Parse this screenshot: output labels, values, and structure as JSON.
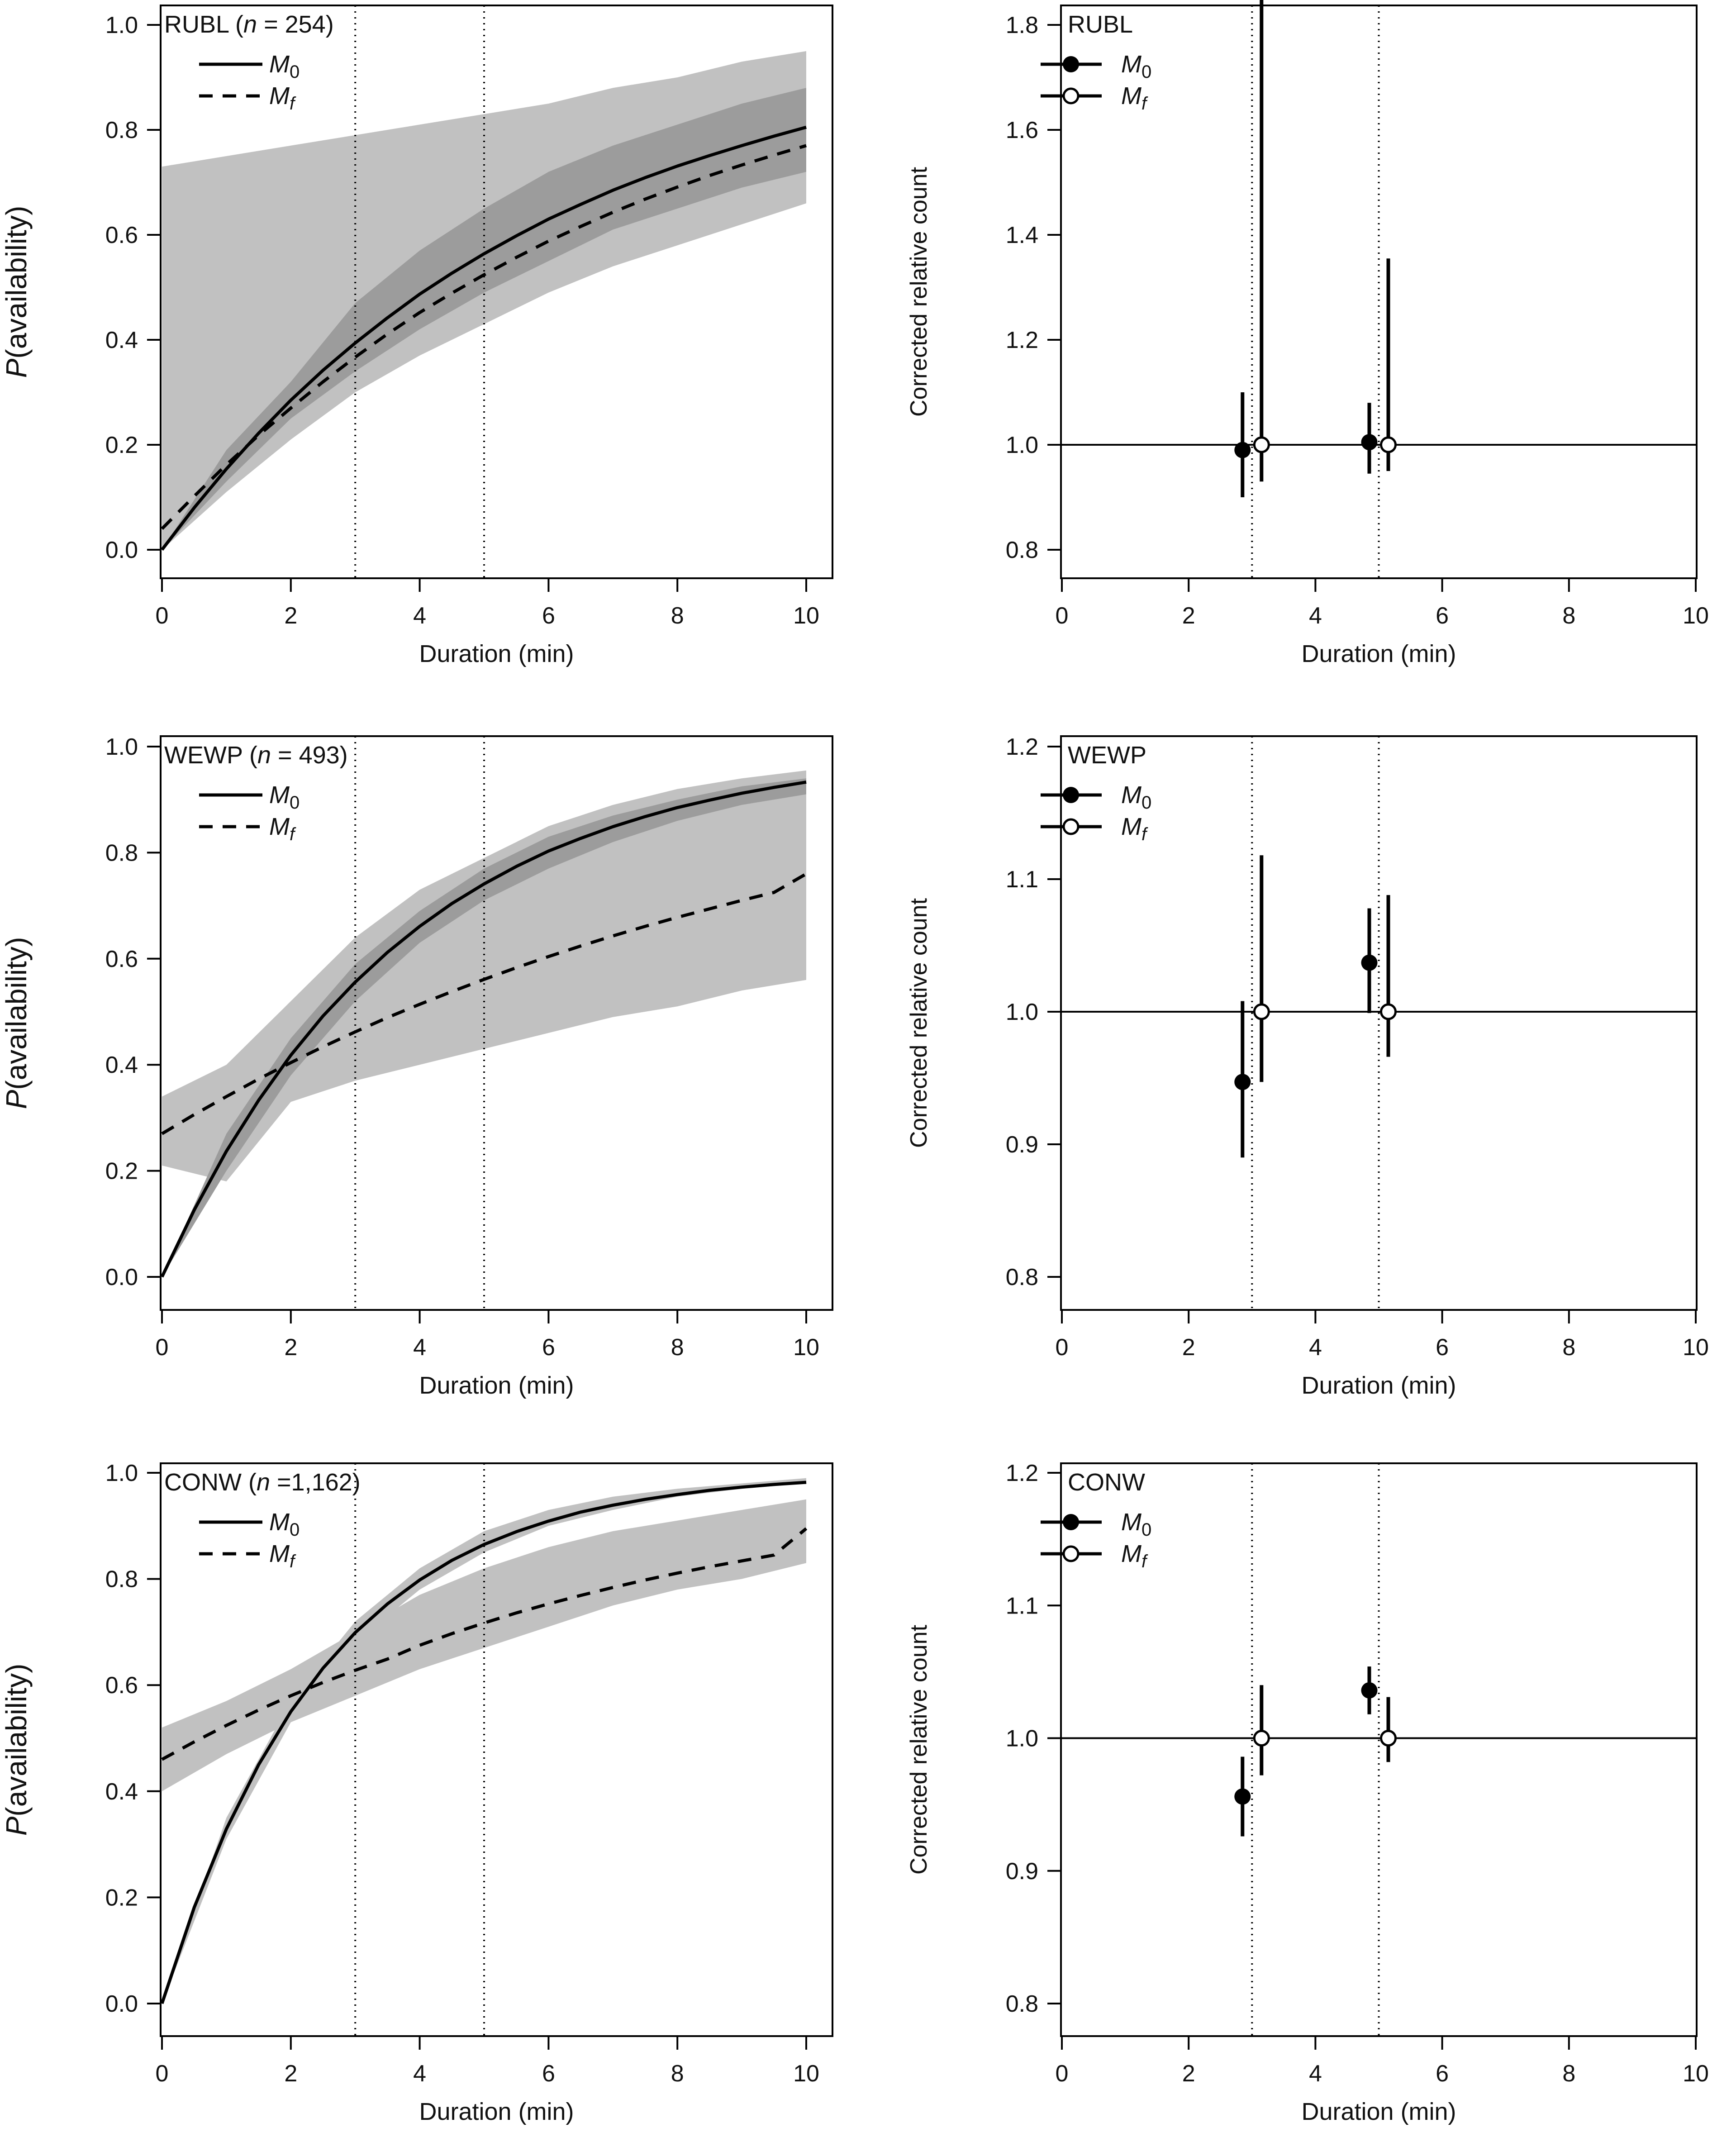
{
  "figure": {
    "x_label": "Duration (min)",
    "background": "#ffffff"
  },
  "colors": {
    "band_light": "#c1c1c1",
    "band_dark": "#9c9c9c",
    "line": "#000000"
  },
  "chart_data": [
    {
      "type": "line",
      "panel": "left",
      "species": "RUBL",
      "label_parts": [
        "RUBL (",
        "n",
        " = 254)"
      ],
      "xlabel": "Duration (min)",
      "ylabel_parts": [
        "P",
        "(availability)"
      ],
      "xlim": [
        0,
        10
      ],
      "ylim": [
        0,
        1
      ],
      "x_ticks": [
        "0",
        "2",
        "4",
        "6",
        "8",
        "10"
      ],
      "y_ticks": [
        "0.0",
        "0.2",
        "0.4",
        "0.6",
        "0.8",
        "1.0"
      ],
      "vlines": [
        3,
        5
      ],
      "legend": [
        {
          "name": "M",
          "sub": "0",
          "style": "solid"
        },
        {
          "name": "M",
          "sub": "f",
          "style": "dashed"
        }
      ],
      "series": [
        {
          "name": "M0",
          "style": "solid",
          "x": [
            0,
            0.5,
            1,
            1.5,
            2,
            2.5,
            3,
            3.5,
            4,
            4.5,
            5,
            5.5,
            6,
            6.5,
            7,
            7.5,
            8,
            8.5,
            9,
            9.5,
            10
          ],
          "y": [
            0,
            0.08,
            0.154,
            0.222,
            0.285,
            0.342,
            0.394,
            0.442,
            0.487,
            0.527,
            0.564,
            0.598,
            0.63,
            0.658,
            0.685,
            0.709,
            0.731,
            0.751,
            0.77,
            0.788,
            0.805
          ]
        },
        {
          "name": "Mf",
          "style": "dashed",
          "x": [
            0,
            0.5,
            1,
            1.5,
            2,
            2.5,
            3,
            3.5,
            4,
            4.5,
            5,
            5.5,
            6,
            6.5,
            7,
            7.5,
            8,
            8.5,
            9,
            9.5,
            10
          ],
          "y": [
            0.04,
            0.102,
            0.162,
            0.218,
            0.27,
            0.32,
            0.367,
            0.411,
            0.452,
            0.489,
            0.524,
            0.557,
            0.588,
            0.616,
            0.643,
            0.668,
            0.691,
            0.713,
            0.733,
            0.752,
            0.77
          ]
        }
      ],
      "bands": [
        {
          "shade": "light",
          "x": [
            0,
            1,
            2,
            3,
            4,
            5,
            6,
            7,
            8,
            9,
            10
          ],
          "lower": [
            0,
            0.11,
            0.21,
            0.3,
            0.37,
            0.43,
            0.49,
            0.54,
            0.58,
            0.62,
            0.66
          ],
          "upper": [
            0.73,
            0.75,
            0.77,
            0.79,
            0.81,
            0.83,
            0.85,
            0.88,
            0.9,
            0.93,
            0.95
          ]
        },
        {
          "shade": "dark",
          "x": [
            0,
            1,
            2,
            3,
            4,
            5,
            6,
            7,
            8,
            9,
            10
          ],
          "lower": [
            0,
            0.13,
            0.25,
            0.34,
            0.42,
            0.49,
            0.55,
            0.61,
            0.65,
            0.69,
            0.72
          ],
          "upper": [
            0,
            0.19,
            0.32,
            0.47,
            0.57,
            0.65,
            0.72,
            0.77,
            0.81,
            0.85,
            0.88
          ]
        }
      ]
    },
    {
      "type": "scatter",
      "panel": "right",
      "species": "RUBL",
      "label_parts": [
        "RUBL"
      ],
      "xlabel": "Duration (min)",
      "ylabel": "Corrected relative count",
      "xlim": [
        0,
        10
      ],
      "ylim": [
        0.8,
        1.8
      ],
      "x_ticks": [
        "0",
        "2",
        "4",
        "6",
        "8",
        "10"
      ],
      "y_ticks": [
        "0.8",
        "1.0",
        "1.2",
        "1.4",
        "1.6",
        "1.8"
      ],
      "vlines": [
        3,
        5
      ],
      "hline": 1.0,
      "legend": [
        {
          "name": "M",
          "sub": "0",
          "marker": "filled"
        },
        {
          "name": "M",
          "sub": "f",
          "marker": "open"
        }
      ],
      "points": [
        {
          "series": "M0",
          "x": 2.85,
          "y": 0.99,
          "lo": 0.9,
          "hi": 1.1
        },
        {
          "series": "Mf",
          "x": 3.15,
          "y": 1.0,
          "lo": 0.93,
          "hi": 1.85
        },
        {
          "series": "M0",
          "x": 4.85,
          "y": 1.005,
          "lo": 0.945,
          "hi": 1.08
        },
        {
          "series": "Mf",
          "x": 5.15,
          "y": 1.0,
          "lo": 0.95,
          "hi": 1.355
        }
      ]
    },
    {
      "type": "line",
      "panel": "left",
      "species": "WEWP",
      "label_parts": [
        "WEWP (",
        "n",
        " = 493)"
      ],
      "xlabel": "Duration (min)",
      "ylabel_parts": [
        "P",
        "(availability)"
      ],
      "xlim": [
        0,
        10
      ],
      "ylim": [
        0,
        1
      ],
      "x_ticks": [
        "0",
        "2",
        "4",
        "6",
        "8",
        "10"
      ],
      "y_ticks": [
        "0.0",
        "0.2",
        "0.4",
        "0.6",
        "0.8",
        "1.0"
      ],
      "vlines": [
        3,
        5
      ],
      "legend": [
        {
          "name": "M",
          "sub": "0",
          "style": "solid"
        },
        {
          "name": "M",
          "sub": "f",
          "style": "dashed"
        }
      ],
      "series": [
        {
          "name": "M0",
          "style": "solid",
          "x": [
            0,
            0.5,
            1,
            1.5,
            2,
            2.5,
            3,
            3.5,
            4,
            4.5,
            5,
            5.5,
            6,
            6.5,
            7,
            7.5,
            8,
            8.5,
            9,
            9.5,
            10
          ],
          "y": [
            0,
            0.126,
            0.237,
            0.333,
            0.418,
            0.492,
            0.556,
            0.612,
            0.661,
            0.704,
            0.741,
            0.774,
            0.803,
            0.827,
            0.849,
            0.868,
            0.885,
            0.899,
            0.912,
            0.923,
            0.933
          ]
        },
        {
          "name": "Mf",
          "style": "dashed",
          "x": [
            0,
            0.5,
            1,
            1.5,
            2,
            2.5,
            3,
            3.5,
            4,
            4.5,
            5,
            5.5,
            6,
            6.5,
            7,
            7.5,
            8,
            8.5,
            9,
            9.5,
            10
          ],
          "y": [
            0.27,
            0.306,
            0.34,
            0.373,
            0.404,
            0.434,
            0.462,
            0.489,
            0.514,
            0.538,
            0.561,
            0.583,
            0.604,
            0.624,
            0.643,
            0.661,
            0.678,
            0.694,
            0.71,
            0.725,
            0.76
          ]
        }
      ],
      "bands": [
        {
          "shade": "light",
          "x": [
            0,
            1,
            2,
            3,
            4,
            5,
            6,
            7,
            8,
            9,
            10
          ],
          "lower": [
            0.21,
            0.18,
            0.33,
            0.37,
            0.4,
            0.43,
            0.46,
            0.49,
            0.51,
            0.54,
            0.56
          ],
          "upper": [
            0.34,
            0.4,
            0.52,
            0.64,
            0.73,
            0.79,
            0.85,
            0.89,
            0.92,
            0.94,
            0.955
          ]
        },
        {
          "shade": "dark",
          "x": [
            0,
            1,
            2,
            3,
            4,
            5,
            6,
            7,
            8,
            9,
            10
          ],
          "lower": [
            0,
            0.2,
            0.38,
            0.52,
            0.63,
            0.71,
            0.77,
            0.82,
            0.86,
            0.89,
            0.91
          ],
          "upper": [
            0,
            0.27,
            0.45,
            0.59,
            0.69,
            0.77,
            0.83,
            0.87,
            0.9,
            0.925,
            0.94
          ]
        }
      ]
    },
    {
      "type": "scatter",
      "panel": "right",
      "species": "WEWP",
      "label_parts": [
        "WEWP"
      ],
      "xlabel": "Duration (min)",
      "ylabel": "Corrected relative count",
      "xlim": [
        0,
        10
      ],
      "ylim": [
        0.8,
        1.2
      ],
      "x_ticks": [
        "0",
        "2",
        "4",
        "6",
        "8",
        "10"
      ],
      "y_ticks": [
        "0.8",
        "0.9",
        "1.0",
        "1.1",
        "1.2"
      ],
      "vlines": [
        3,
        5
      ],
      "hline": 1.0,
      "legend": [
        {
          "name": "M",
          "sub": "0",
          "marker": "filled"
        },
        {
          "name": "M",
          "sub": "f",
          "marker": "open"
        }
      ],
      "points": [
        {
          "series": "M0",
          "x": 2.85,
          "y": 0.947,
          "lo": 0.89,
          "hi": 1.008
        },
        {
          "series": "Mf",
          "x": 3.15,
          "y": 1.0,
          "lo": 0.947,
          "hi": 1.118
        },
        {
          "series": "M0",
          "x": 4.85,
          "y": 1.037,
          "lo": 0.999,
          "hi": 1.078
        },
        {
          "series": "Mf",
          "x": 5.15,
          "y": 1.0,
          "lo": 0.966,
          "hi": 1.088
        }
      ]
    },
    {
      "type": "line",
      "panel": "left",
      "species": "CONW",
      "label_parts": [
        "CONW (",
        "n",
        " =1,162)"
      ],
      "xlabel": "Duration (min)",
      "ylabel_parts": [
        "P",
        "(availability)"
      ],
      "xlim": [
        0,
        10
      ],
      "ylim": [
        0,
        1
      ],
      "x_ticks": [
        "0",
        "2",
        "4",
        "6",
        "8",
        "10"
      ],
      "y_ticks": [
        "0.0",
        "0.2",
        "0.4",
        "0.6",
        "0.8",
        "1.0"
      ],
      "vlines": [
        3,
        5
      ],
      "legend": [
        {
          "name": "M",
          "sub": "0",
          "style": "solid"
        },
        {
          "name": "M",
          "sub": "f",
          "style": "dashed"
        }
      ],
      "series": [
        {
          "name": "M0",
          "style": "solid",
          "x": [
            0,
            0.5,
            1,
            1.5,
            2,
            2.5,
            3,
            3.5,
            4,
            4.5,
            5,
            5.5,
            6,
            6.5,
            7,
            7.5,
            8,
            8.5,
            9,
            9.5,
            10
          ],
          "y": [
            0,
            0.181,
            0.329,
            0.45,
            0.55,
            0.632,
            0.699,
            0.753,
            0.798,
            0.835,
            0.865,
            0.889,
            0.909,
            0.926,
            0.939,
            0.95,
            0.959,
            0.967,
            0.973,
            0.978,
            0.982
          ]
        },
        {
          "name": "Mf",
          "style": "dashed",
          "x": [
            0,
            0.5,
            1,
            1.5,
            2,
            2.5,
            3,
            3.5,
            4,
            4.5,
            5,
            5.5,
            6,
            6.5,
            7,
            7.5,
            8,
            8.5,
            9,
            9.5,
            10
          ],
          "y": [
            0.46,
            0.493,
            0.524,
            0.553,
            0.58,
            0.605,
            0.628,
            0.649,
            0.675,
            0.697,
            0.717,
            0.736,
            0.753,
            0.769,
            0.784,
            0.798,
            0.811,
            0.823,
            0.834,
            0.845,
            0.895
          ]
        }
      ],
      "bands": [
        {
          "shade": "light",
          "x": [
            0,
            1,
            2,
            3,
            4,
            5,
            6,
            7,
            8,
            9,
            10
          ],
          "lower": [
            0.4,
            0.47,
            0.53,
            0.58,
            0.63,
            0.67,
            0.71,
            0.75,
            0.78,
            0.8,
            0.83
          ],
          "upper": [
            0.52,
            0.57,
            0.63,
            0.7,
            0.77,
            0.82,
            0.86,
            0.89,
            0.91,
            0.93,
            0.95
          ]
        },
        {
          "shade": "light",
          "x": [
            0,
            1,
            2,
            3,
            4,
            5,
            6,
            7,
            8,
            9,
            10
          ],
          "lower": [
            0,
            0.31,
            0.53,
            0.68,
            0.78,
            0.85,
            0.9,
            0.93,
            0.955,
            0.97,
            0.98
          ],
          "upper": [
            0,
            0.35,
            0.57,
            0.72,
            0.82,
            0.89,
            0.93,
            0.955,
            0.97,
            0.98,
            0.99
          ]
        }
      ]
    },
    {
      "type": "scatter",
      "panel": "right",
      "species": "CONW",
      "label_parts": [
        "CONW"
      ],
      "xlabel": "Duration (min)",
      "ylabel": "Corrected relative count",
      "xlim": [
        0,
        10
      ],
      "ylim": [
        0.8,
        1.2
      ],
      "x_ticks": [
        "0",
        "2",
        "4",
        "6",
        "8",
        "10"
      ],
      "y_ticks": [
        "0.8",
        "0.9",
        "1.0",
        "1.1",
        "1.2"
      ],
      "vlines": [
        3,
        5
      ],
      "hline": 1.0,
      "legend": [
        {
          "name": "M",
          "sub": "0",
          "marker": "filled"
        },
        {
          "name": "M",
          "sub": "f",
          "marker": "open"
        }
      ],
      "points": [
        {
          "series": "M0",
          "x": 2.85,
          "y": 0.956,
          "lo": 0.926,
          "hi": 0.986
        },
        {
          "series": "Mf",
          "x": 3.15,
          "y": 1.0,
          "lo": 0.972,
          "hi": 1.04
        },
        {
          "series": "M0",
          "x": 4.85,
          "y": 1.036,
          "lo": 1.018,
          "hi": 1.054
        },
        {
          "series": "Mf",
          "x": 5.15,
          "y": 1.0,
          "lo": 0.982,
          "hi": 1.031
        }
      ]
    }
  ]
}
